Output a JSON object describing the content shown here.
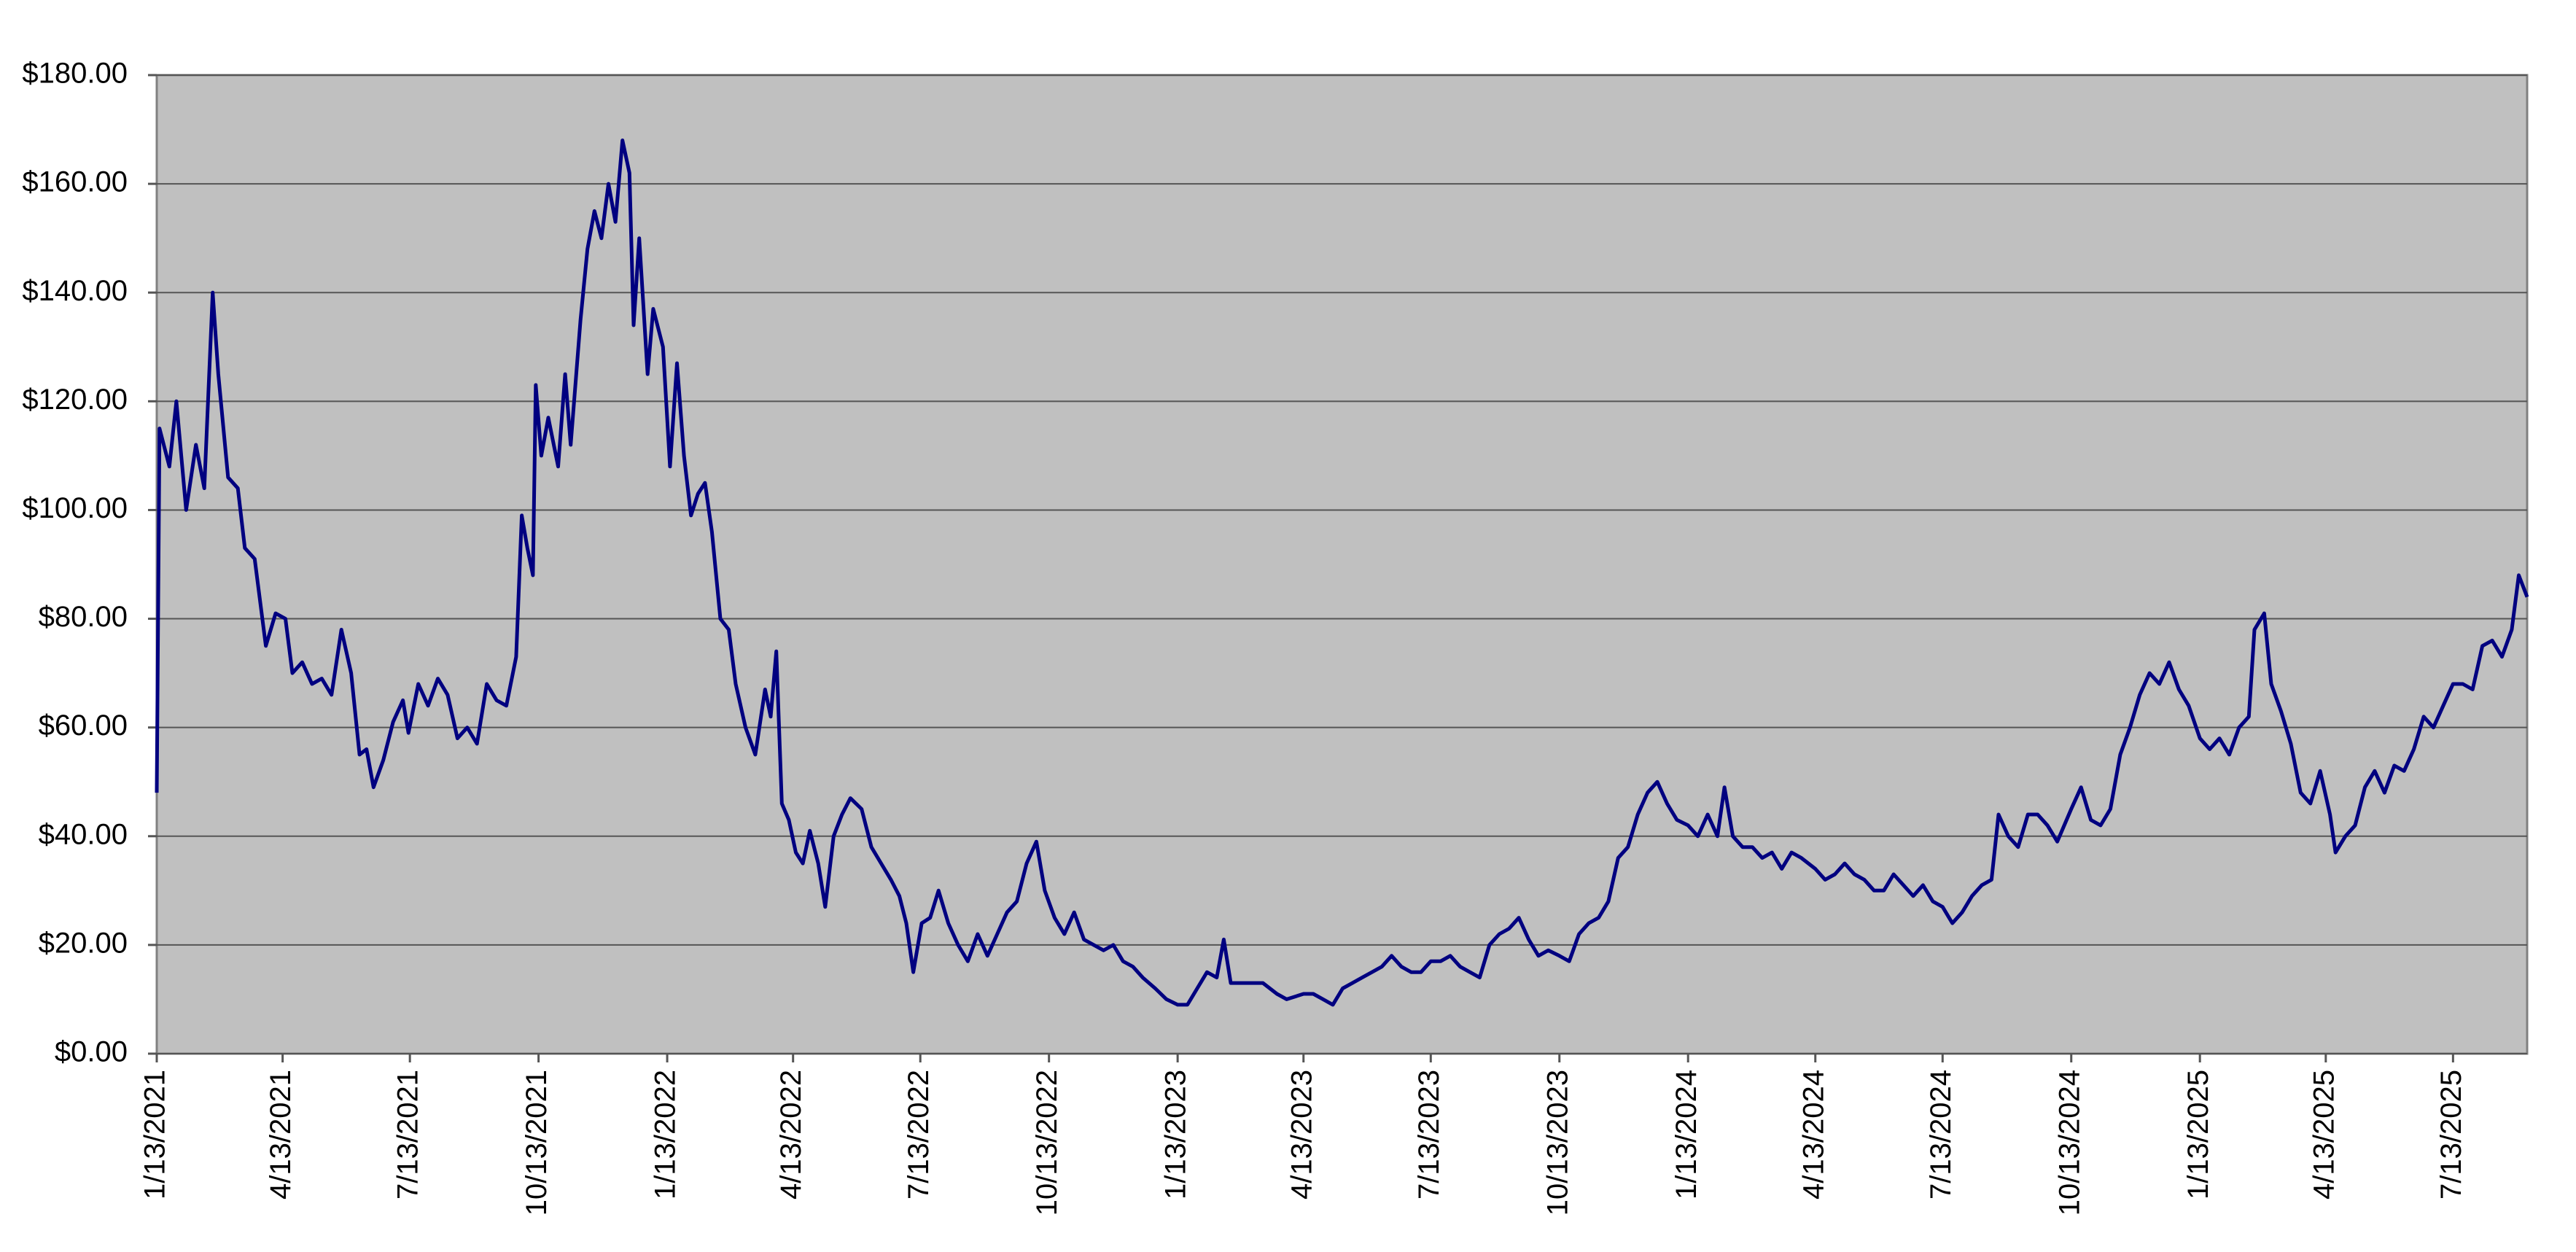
{
  "chart_data": {
    "type": "line",
    "x": [
      "1/13/2021",
      "1/15/2021",
      "1/22/2021",
      "1/27/2021",
      "2/3/2021",
      "2/10/2021",
      "2/16/2021",
      "2/22/2021",
      "2/26/2021",
      "3/5/2021",
      "3/12/2021",
      "3/17/2021",
      "3/24/2021",
      "4/1/2021",
      "4/8/2021",
      "4/15/2021",
      "4/20/2021",
      "4/27/2021",
      "5/4/2021",
      "5/11/2021",
      "5/18/2021",
      "5/25/2021",
      "6/1/2021",
      "6/7/2021",
      "6/12/2021",
      "6/17/2021",
      "6/24/2021",
      "7/1/2021",
      "7/8/2021",
      "7/12/2021",
      "7/19/2021",
      "7/26/2021",
      "8/2/2021",
      "8/9/2021",
      "8/16/2021",
      "8/23/2021",
      "8/30/2021",
      "9/6/2021",
      "9/13/2021",
      "9/20/2021",
      "9/27/2021",
      "10/1/2021",
      "10/5/2021",
      "10/9/2021",
      "10/11/2021",
      "10/15/2021",
      "10/20/2021",
      "10/27/2021",
      "11/1/2021",
      "11/5/2021",
      "11/12/2021",
      "11/17/2021",
      "11/22/2021",
      "11/27/2021",
      "12/2/2021",
      "12/7/2021",
      "12/12/2021",
      "12/17/2021",
      "12/20/2021",
      "12/24/2021",
      "12/30/2021",
      "1/3/2022",
      "1/10/2022",
      "1/15/2022",
      "1/20/2022",
      "1/25/2022",
      "1/30/2022",
      "2/4/2022",
      "2/9/2022",
      "2/14/2022",
      "2/20/2022",
      "2/26/2022",
      "3/3/2022",
      "3/10/2022",
      "3/17/2022",
      "3/24/2022",
      "3/28/2022",
      "4/1/2022",
      "4/5/2022",
      "4/10/2022",
      "4/15/2022",
      "4/20/2022",
      "4/25/2022",
      "5/1/2022",
      "5/6/2022",
      "5/12/2022",
      "5/18/2022",
      "5/24/2022",
      "6/1/2022",
      "6/8/2022",
      "6/15/2022",
      "6/22/2022",
      "6/28/2022",
      "7/3/2022",
      "7/8/2022",
      "7/14/2022",
      "7/20/2022",
      "7/26/2022",
      "8/2/2022",
      "8/9/2022",
      "8/16/2022",
      "8/23/2022",
      "8/30/2022",
      "9/6/2022",
      "9/13/2022",
      "9/20/2022",
      "9/27/2022",
      "10/4/2022",
      "10/10/2022",
      "10/17/2022",
      "10/24/2022",
      "10/31/2022",
      "11/7/2022",
      "11/14/2022",
      "11/21/2022",
      "11/28/2022",
      "12/5/2022",
      "12/12/2022",
      "12/19/2022",
      "12/28/2022",
      "1/5/2023",
      "1/13/2023",
      "1/20/2023",
      "1/27/2023",
      "2/3/2023",
      "2/10/2023",
      "2/15/2023",
      "2/20/2023",
      "3/1/2023",
      "3/8/2023",
      "3/15/2023",
      "3/25/2023",
      "4/1/2023",
      "4/13/2023",
      "4/20/2023",
      "4/27/2023",
      "5/4/2023",
      "5/11/2023",
      "5/18/2023",
      "5/25/2023",
      "6/1/2023",
      "6/8/2023",
      "6/15/2023",
      "6/22/2023",
      "6/29/2023",
      "7/6/2023",
      "7/13/2023",
      "7/20/2023",
      "7/27/2023",
      "8/3/2023",
      "8/10/2023",
      "8/17/2023",
      "8/24/2023",
      "8/31/2023",
      "9/7/2023",
      "9/14/2023",
      "9/21/2023",
      "9/28/2023",
      "10/5/2023",
      "10/13/2023",
      "10/20/2023",
      "10/27/2023",
      "11/3/2023",
      "11/10/2023",
      "11/17/2023",
      "11/24/2023",
      "12/1/2023",
      "12/8/2023",
      "12/15/2023",
      "12/22/2023",
      "12/29/2023",
      "1/5/2024",
      "1/13/2024",
      "1/20/2024",
      "1/27/2024",
      "2/3/2024",
      "2/8/2024",
      "2/14/2024",
      "2/21/2024",
      "2/28/2024",
      "3/6/2024",
      "3/13/2024",
      "3/20/2024",
      "3/27/2024",
      "4/3/2024",
      "4/13/2024",
      "4/20/2024",
      "4/27/2024",
      "5/4/2024",
      "5/11/2024",
      "5/18/2024",
      "5/25/2024",
      "6/1/2024",
      "6/8/2024",
      "6/15/2024",
      "6/22/2024",
      "6/29/2024",
      "7/6/2024",
      "7/13/2024",
      "7/20/2024",
      "7/27/2024",
      "8/3/2024",
      "8/10/2024",
      "8/17/2024",
      "8/22/2024",
      "8/29/2024",
      "9/5/2024",
      "9/12/2024",
      "9/19/2024",
      "9/26/2024",
      "10/3/2024",
      "10/13/2024",
      "10/20/2024",
      "10/27/2024",
      "11/3/2024",
      "11/10/2024",
      "11/17/2024",
      "11/24/2024",
      "12/1/2024",
      "12/8/2024",
      "12/15/2024",
      "12/22/2024",
      "12/29/2024",
      "1/5/2025",
      "1/13/2025",
      "1/20/2025",
      "1/27/2025",
      "2/3/2025",
      "2/10/2025",
      "2/17/2025",
      "2/21/2025",
      "2/28/2025",
      "3/5/2025",
      "3/12/2025",
      "3/19/2025",
      "3/26/2025",
      "4/2/2025",
      "4/9/2025",
      "4/16/2025",
      "4/20/2025",
      "4/27/2025",
      "5/4/2025",
      "5/11/2025",
      "5/18/2025",
      "5/25/2025",
      "6/1/2025",
      "6/8/2025",
      "6/15/2025",
      "6/22/2025",
      "6/29/2025",
      "7/6/2025",
      "7/13/2025",
      "7/20/2025",
      "7/27/2025",
      "8/3/2025",
      "8/10/2025",
      "8/17/2025",
      "8/24/2025",
      "8/29/2025",
      "9/4/2025"
    ],
    "values": [
      48,
      115,
      108,
      120,
      100,
      112,
      104,
      140,
      125,
      106,
      104,
      93,
      91,
      75,
      81,
      80,
      70,
      72,
      68,
      69,
      66,
      78,
      70,
      55,
      56,
      49,
      54,
      61,
      65,
      59,
      68,
      64,
      69,
      66,
      58,
      60,
      57,
      68,
      65,
      64,
      73,
      99,
      93,
      88,
      123,
      110,
      117,
      108,
      125,
      112,
      135,
      148,
      155,
      150,
      160,
      153,
      168,
      162,
      134,
      150,
      125,
      137,
      130,
      108,
      127,
      110,
      99,
      103,
      105,
      96,
      80,
      78,
      68,
      60,
      55,
      67,
      62,
      74,
      46,
      43,
      37,
      35,
      41,
      35,
      27,
      40,
      44,
      47,
      45,
      38,
      35,
      32,
      29,
      24,
      15,
      24,
      25,
      30,
      24,
      20,
      17,
      22,
      18,
      22,
      26,
      28,
      35,
      39,
      30,
      25,
      22,
      26,
      21,
      20,
      19,
      20,
      17,
      16,
      14,
      12,
      10,
      9,
      9,
      12,
      15,
      14,
      21,
      13,
      13,
      13,
      13,
      11,
      10,
      11,
      11,
      10,
      9,
      12,
      13,
      14,
      15,
      16,
      18,
      16,
      15,
      15,
      17,
      17,
      18,
      16,
      15,
      14,
      20,
      22,
      23,
      25,
      21,
      18,
      19,
      18,
      17,
      22,
      24,
      25,
      28,
      36,
      38,
      44,
      48,
      50,
      46,
      43,
      42,
      40,
      44,
      40,
      49,
      40,
      38,
      38,
      36,
      37,
      34,
      37,
      36,
      34,
      32,
      33,
      35,
      33,
      32,
      30,
      30,
      33,
      31,
      29,
      31,
      28,
      27,
      24,
      26,
      29,
      31,
      32,
      44,
      40,
      38,
      44,
      44,
      42,
      39,
      45,
      49,
      43,
      42,
      45,
      55,
      60,
      66,
      70,
      68,
      72,
      67,
      64,
      58,
      56,
      58,
      55,
      60,
      62,
      78,
      81,
      68,
      63,
      57,
      48,
      46,
      52,
      44,
      37,
      40,
      42,
      49,
      52,
      48,
      53,
      52,
      56,
      62,
      60,
      64,
      68,
      68,
      67,
      75,
      76,
      73,
      78,
      88,
      84
    ],
    "color": "#000080",
    "xlim": [
      "1/13/2021",
      "9/4/2025"
    ],
    "xticks": [
      "1/13/2021",
      "4/13/2021",
      "7/13/2021",
      "10/13/2021",
      "1/13/2022",
      "4/13/2022",
      "7/13/2022",
      "10/13/2022",
      "1/13/2023",
      "4/13/2023",
      "7/13/2023",
      "10/13/2023",
      "1/13/2024",
      "4/13/2024",
      "7/13/2024",
      "10/13/2024",
      "1/13/2025",
      "4/13/2025",
      "7/13/2025"
    ],
    "ylim": [
      0,
      180
    ],
    "yticks": [
      {
        "value": 0,
        "label": "$0.00"
      },
      {
        "value": 20,
        "label": "$20.00"
      },
      {
        "value": 40,
        "label": "$40.00"
      },
      {
        "value": 60,
        "label": "$60.00"
      },
      {
        "value": 80,
        "label": "$80.00"
      },
      {
        "value": 100,
        "label": "$100.00"
      },
      {
        "value": 120,
        "label": "$120.00"
      },
      {
        "value": 140,
        "label": "$140.00"
      },
      {
        "value": 160,
        "label": "$160.00"
      },
      {
        "value": 180,
        "label": "$180.00"
      }
    ],
    "grid": true
  }
}
